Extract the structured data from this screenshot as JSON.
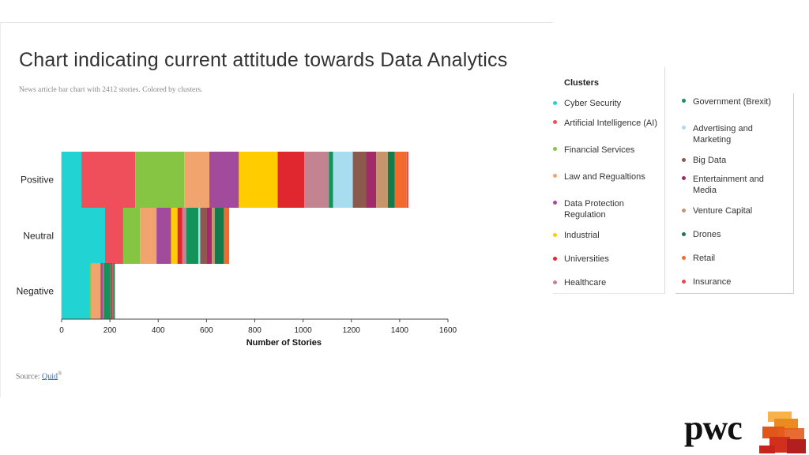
{
  "slide": {
    "title": "Chart indicating current attitude towards Data Analytics",
    "subtitle": "News article bar chart with 2412 stories. Colored by clusters.",
    "source_label": "Source:",
    "source_link": "Quid",
    "source_mark": "®",
    "brand": "pwc"
  },
  "legend": {
    "title": "Clusters",
    "left": [
      {
        "label": "Cyber Security",
        "color": "#22d3d3"
      },
      {
        "label": "Artificial Intelligence (AI)",
        "color": "#ef4f5a"
      },
      {
        "label": "Financial Services",
        "color": "#86c444"
      },
      {
        "label": "Law and Regualtions",
        "color": "#f2a46f"
      },
      {
        "label": "Data Protection Regulation",
        "color": "#a24a9b"
      },
      {
        "label": "Industrial",
        "color": "#ffcc00"
      },
      {
        "label": "Universities",
        "color": "#e0262f"
      },
      {
        "label": "Healthcare",
        "color": "#c38391"
      }
    ],
    "right": [
      {
        "label": "Government (Brexit)",
        "color": "#12935a"
      },
      {
        "label": "Advertising and Marketing",
        "color": "#a8dcef"
      },
      {
        "label": "Big Data",
        "color": "#8c5a4c"
      },
      {
        "label": "Entertainment and Media",
        "color": "#a32a68"
      },
      {
        "label": "Venture Capital",
        "color": "#c6956b"
      },
      {
        "label": "Drones",
        "color": "#137a4c"
      },
      {
        "label": "Retail",
        "color": "#f26a2d"
      },
      {
        "label": "Insurance",
        "color": "#e8484f"
      }
    ]
  },
  "chart_data": {
    "type": "bar",
    "orientation": "horizontal",
    "stacked": true,
    "title": "Chart indicating current attitude towards Data Analytics",
    "xlabel": "Number of Stories",
    "ylabel": "",
    "xlim": [
      0,
      1600
    ],
    "xticks": [
      0,
      200,
      400,
      600,
      800,
      1000,
      1200,
      1400,
      1600
    ],
    "categories": [
      "Positive",
      "Neutral",
      "Negative"
    ],
    "series": [
      {
        "name": "Cyber Security",
        "color": "#22d3d3",
        "values": [
          82,
          180,
          118
        ]
      },
      {
        "name": "Artificial Intelligence (AI)",
        "color": "#ef4f5a",
        "values": [
          223,
          75,
          0
        ]
      },
      {
        "name": "Financial Services",
        "color": "#86c444",
        "values": [
          203,
          70,
          5
        ]
      },
      {
        "name": "Law and Regualtions",
        "color": "#f2a46f",
        "values": [
          104,
          68,
          38
        ]
      },
      {
        "name": "Data Protection Regulation",
        "color": "#a24a9b",
        "values": [
          122,
          60,
          6
        ]
      },
      {
        "name": "Industrial",
        "color": "#ffcc00",
        "values": [
          161,
          27,
          0
        ]
      },
      {
        "name": "Universities",
        "color": "#e0262f",
        "values": [
          110,
          20,
          3
        ]
      },
      {
        "name": "Healthcare",
        "color": "#c38391",
        "values": [
          102,
          16,
          4
        ]
      },
      {
        "name": "Government (Brexit)",
        "color": "#12935a",
        "values": [
          17,
          50,
          28
        ]
      },
      {
        "name": "Advertising and Marketing",
        "color": "#a8dcef",
        "values": [
          82,
          8,
          0
        ]
      },
      {
        "name": "Big Data",
        "color": "#8c5a4c",
        "values": [
          54,
          26,
          5
        ]
      },
      {
        "name": "Entertainment and Media",
        "color": "#a32a68",
        "values": [
          43,
          22,
          4
        ]
      },
      {
        "name": "Venture Capital",
        "color": "#c6956b",
        "values": [
          48,
          12,
          3
        ]
      },
      {
        "name": "Drones",
        "color": "#137a4c",
        "values": [
          28,
          38,
          5
        ]
      },
      {
        "name": "Retail",
        "color": "#f26a2d",
        "values": [
          50,
          22,
          2
        ]
      },
      {
        "name": "Insurance",
        "color": "#e8484f",
        "values": [
          7,
          0,
          0
        ]
      }
    ],
    "legend_position": "right",
    "grid": false
  }
}
